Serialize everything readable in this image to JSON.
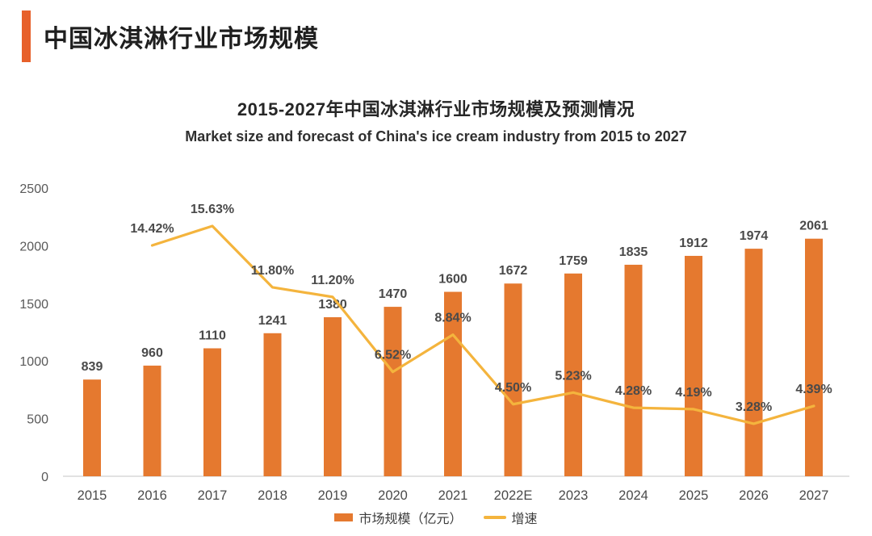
{
  "header": {
    "title": "中国冰淇淋行业市场规模"
  },
  "chart": {
    "title_cn": "2015-2027年中国冰淇淋行业市场规模及预测情况",
    "title_en": "Market size and forecast of China's ice cream industry from 2015 to 2027",
    "legend": {
      "bar": "市场规模（亿元）",
      "line": "增速"
    }
  },
  "colors": {
    "accent": "#E7602A",
    "bar": "#E5792F",
    "line": "#F4B43D",
    "value_label": "#4A4A4A",
    "tick_label": "#595959",
    "axis_line": "#D9D9D9"
  },
  "chart_data": {
    "type": "bar",
    "combo": "bar+line",
    "title": "2015-2027年中国冰淇淋行业市场规模及预测情况",
    "subtitle": "Market size and forecast of China's ice cream industry from 2015 to 2027",
    "categories": [
      "2015",
      "2016",
      "2017",
      "2018",
      "2019",
      "2020",
      "2021",
      "2022E",
      "2023",
      "2024",
      "2025",
      "2026",
      "2027"
    ],
    "series": [
      {
        "name": "市场规模（亿元）",
        "type": "bar",
        "axis": "primary",
        "values": [
          839,
          960,
          1110,
          1241,
          1380,
          1470,
          1600,
          1672,
          1759,
          1835,
          1912,
          1974,
          2061
        ],
        "labels": [
          "839",
          "960",
          "1110",
          "1241",
          "1380",
          "1470",
          "1600",
          "1672",
          "1759",
          "1835",
          "1912",
          "1974",
          "2061"
        ]
      },
      {
        "name": "增速",
        "type": "line",
        "axis": "secondary",
        "x": [
          "2016",
          "2017",
          "2018",
          "2019",
          "2020",
          "2021",
          "2022E",
          "2023",
          "2024",
          "2025",
          "2026",
          "2027"
        ],
        "values": [
          14.42,
          15.63,
          11.8,
          11.2,
          6.52,
          8.84,
          4.5,
          5.23,
          4.28,
          4.19,
          3.28,
          4.39
        ],
        "labels": [
          "14.42%",
          "15.63%",
          "11.80%",
          "11.20%",
          "6.52%",
          "8.84%",
          "4.50%",
          "5.23%",
          "4.28%",
          "4.19%",
          "3.28%",
          "4.39%"
        ]
      }
    ],
    "xlabel": "",
    "ylabel": "",
    "ylim": [
      0,
      2500
    ],
    "yticks": [
      0,
      500,
      1000,
      1500,
      2000,
      2500
    ],
    "secondary_ylim": [
      0,
      18
    ],
    "grid": false,
    "legend_position": "bottom"
  }
}
